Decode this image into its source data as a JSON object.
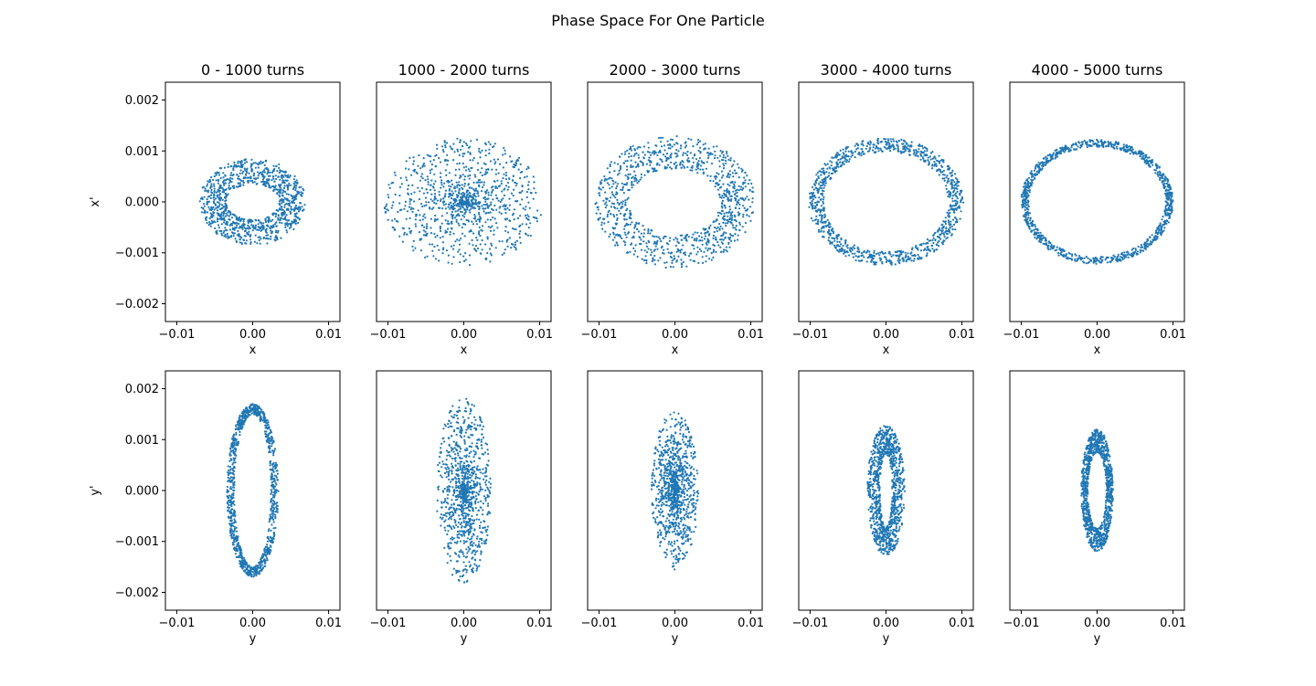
{
  "figure_title": "Phase Space For One Particle",
  "point_color": "#1f77b4",
  "chart_data": [
    {
      "type": "scatter",
      "row": 0,
      "col": 0,
      "title": "0 - 1000 turns",
      "xlabel": "x",
      "ylabel": "x'",
      "xlim": [
        -0.0115,
        0.0115
      ],
      "ylim": [
        -0.00235,
        0.00235
      ],
      "xticks": [
        -0.01,
        0.0,
        0.01
      ],
      "xtick_labels": [
        "−0.01",
        "0.00",
        "0.01"
      ],
      "yticks": [
        -0.002,
        -0.001,
        0.0,
        0.001,
        0.002
      ],
      "ytick_labels": [
        "−0.002",
        "−0.001",
        "0.000",
        "0.001",
        "0.002"
      ],
      "distribution": {
        "shape": "ring",
        "n_points": 1000,
        "center": [
          0,
          0
        ],
        "semi_axis_x": [
          0.0035,
          0.007
        ],
        "semi_axis_y": [
          0.00035,
          0.00085
        ]
      }
    },
    {
      "type": "scatter",
      "row": 0,
      "col": 1,
      "title": "1000 - 2000 turns",
      "xlabel": "x",
      "ylabel": "",
      "xlim": [
        -0.0115,
        0.0115
      ],
      "ylim": [
        -0.00235,
        0.00235
      ],
      "xticks": [
        -0.01,
        0.0,
        0.01
      ],
      "xtick_labels": [
        "−0.01",
        "0.00",
        "0.01"
      ],
      "distribution": {
        "shape": "ring",
        "n_points": 1000,
        "center": [
          0,
          0
        ],
        "semi_axis_x": [
          0.0,
          0.0105
        ],
        "semi_axis_y": [
          0.0,
          0.00125
        ]
      }
    },
    {
      "type": "scatter",
      "row": 0,
      "col": 2,
      "title": "2000 - 3000 turns",
      "xlabel": "x",
      "ylabel": "",
      "xlim": [
        -0.0115,
        0.0115
      ],
      "ylim": [
        -0.00235,
        0.00235
      ],
      "xticks": [
        -0.01,
        0.0,
        0.01
      ],
      "xtick_labels": [
        "−0.01",
        "0.00",
        "0.01"
      ],
      "distribution": {
        "shape": "ring",
        "n_points": 1000,
        "center": [
          0,
          0
        ],
        "semi_axis_x": [
          0.006,
          0.0105
        ],
        "semi_axis_y": [
          0.00065,
          0.0013
        ]
      }
    },
    {
      "type": "scatter",
      "row": 0,
      "col": 3,
      "title": "3000 - 4000 turns",
      "xlabel": "x",
      "ylabel": "",
      "xlim": [
        -0.0115,
        0.0115
      ],
      "ylim": [
        -0.00235,
        0.00235
      ],
      "xticks": [
        -0.01,
        0.0,
        0.01
      ],
      "xtick_labels": [
        "−0.01",
        "0.00",
        "0.01"
      ],
      "distribution": {
        "shape": "ring",
        "n_points": 1000,
        "center": [
          0,
          0
        ],
        "semi_axis_x": [
          0.0082,
          0.0102
        ],
        "semi_axis_y": [
          0.00098,
          0.00125
        ]
      }
    },
    {
      "type": "scatter",
      "row": 0,
      "col": 4,
      "title": "4000 - 5000 turns",
      "xlabel": "x",
      "ylabel": "",
      "xlim": [
        -0.0115,
        0.0115
      ],
      "ylim": [
        -0.00235,
        0.00235
      ],
      "xticks": [
        -0.01,
        0.0,
        0.01
      ],
      "xtick_labels": [
        "−0.01",
        "0.00",
        "0.01"
      ],
      "distribution": {
        "shape": "ring",
        "n_points": 1000,
        "center": [
          0,
          0
        ],
        "semi_axis_x": [
          0.009,
          0.01
        ],
        "semi_axis_y": [
          0.00108,
          0.00122
        ]
      }
    },
    {
      "type": "scatter",
      "row": 1,
      "col": 0,
      "title": "",
      "xlabel": "y",
      "ylabel": "y'",
      "xlim": [
        -0.0115,
        0.0115
      ],
      "ylim": [
        -0.00235,
        0.00235
      ],
      "xticks": [
        -0.01,
        0.0,
        0.01
      ],
      "xtick_labels": [
        "−0.01",
        "0.00",
        "0.01"
      ],
      "yticks": [
        -0.002,
        -0.001,
        0.0,
        0.001,
        0.002
      ],
      "ytick_labels": [
        "−0.002",
        "−0.001",
        "0.000",
        "0.001",
        "0.002"
      ],
      "distribution": {
        "shape": "ring",
        "n_points": 1000,
        "center": [
          0,
          0
        ],
        "semi_axis_x": [
          0.0024,
          0.0034
        ],
        "semi_axis_y": [
          0.0015,
          0.0017
        ]
      }
    },
    {
      "type": "scatter",
      "row": 1,
      "col": 1,
      "title": "",
      "xlabel": "y",
      "ylabel": "",
      "xlim": [
        -0.0115,
        0.0115
      ],
      "ylim": [
        -0.00235,
        0.00235
      ],
      "xticks": [
        -0.01,
        0.0,
        0.01
      ],
      "xtick_labels": [
        "−0.01",
        "0.00",
        "0.01"
      ],
      "distribution": {
        "shape": "ring",
        "n_points": 1000,
        "center": [
          0,
          0
        ],
        "semi_axis_x": [
          0.0,
          0.0036
        ],
        "semi_axis_y": [
          0.0,
          0.00182
        ]
      }
    },
    {
      "type": "scatter",
      "row": 1,
      "col": 2,
      "title": "",
      "xlabel": "y",
      "ylabel": "",
      "xlim": [
        -0.0115,
        0.0115
      ],
      "ylim": [
        -0.00235,
        0.00235
      ],
      "xticks": [
        -0.01,
        0.0,
        0.01
      ],
      "xtick_labels": [
        "−0.01",
        "0.00",
        "0.01"
      ],
      "distribution": {
        "shape": "ring",
        "n_points": 1000,
        "center": [
          0,
          0
        ],
        "semi_axis_x": [
          0.0,
          0.0031
        ],
        "semi_axis_y": [
          0.0,
          0.00155
        ]
      }
    },
    {
      "type": "scatter",
      "row": 1,
      "col": 3,
      "title": "",
      "xlabel": "y",
      "ylabel": "",
      "xlim": [
        -0.0115,
        0.0115
      ],
      "ylim": [
        -0.00235,
        0.00235
      ],
      "xticks": [
        -0.01,
        0.0,
        0.01
      ],
      "xtick_labels": [
        "−0.01",
        "0.00",
        "0.01"
      ],
      "distribution": {
        "shape": "ring",
        "n_points": 1000,
        "center": [
          0,
          0
        ],
        "semi_axis_x": [
          0.0008,
          0.0025
        ],
        "semi_axis_y": [
          0.0007,
          0.00128
        ]
      }
    },
    {
      "type": "scatter",
      "row": 1,
      "col": 4,
      "title": "",
      "xlabel": "y",
      "ylabel": "",
      "xlim": [
        -0.0115,
        0.0115
      ],
      "ylim": [
        -0.00235,
        0.00235
      ],
      "xticks": [
        -0.01,
        0.0,
        0.01
      ],
      "xtick_labels": [
        "−0.01",
        "0.00",
        "0.01"
      ],
      "distribution": {
        "shape": "ring",
        "n_points": 1000,
        "center": [
          0,
          0
        ],
        "semi_axis_x": [
          0.0012,
          0.0021
        ],
        "semi_axis_y": [
          0.00075,
          0.0012
        ]
      }
    }
  ]
}
